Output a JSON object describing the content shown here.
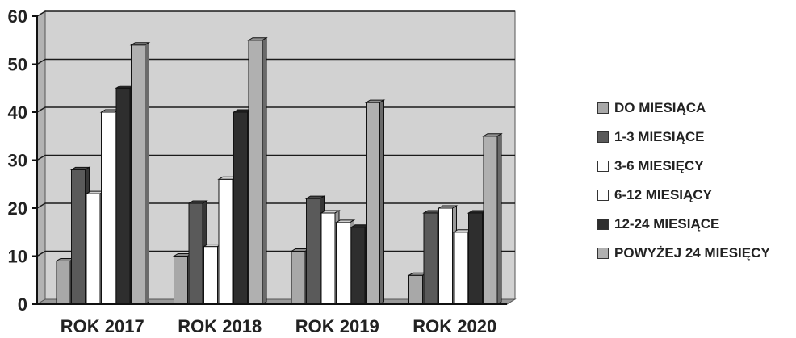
{
  "chart_data": {
    "type": "bar",
    "categories": [
      "ROK 2017",
      "ROK 2018",
      "ROK 2019",
      "ROK 2020"
    ],
    "series": [
      {
        "name": "DO MIESIĄCA",
        "values": [
          9,
          10,
          11,
          6
        ],
        "color": "#a8a8a8"
      },
      {
        "name": "1-3 MIESIĄCE",
        "values": [
          28,
          21,
          22,
          19
        ],
        "color": "#5a5a5a"
      },
      {
        "name": "3-6 MIESIĘCY",
        "values": [
          23,
          12,
          19,
          20
        ],
        "color": "#ffffff"
      },
      {
        "name": "6-12 MIESIĄCY",
        "values": [
          40,
          26,
          17,
          15
        ],
        "color": "#ffffff"
      },
      {
        "name": "12-24 MIESIĄCE",
        "values": [
          45,
          40,
          16,
          19
        ],
        "color": "#2e2e2e"
      },
      {
        "name": "POWYŻEJ 24 MIESIĘCY",
        "values": [
          54,
          55,
          42,
          35
        ],
        "color": "#b0b0b0"
      }
    ],
    "yticks": [
      0,
      10,
      20,
      30,
      40,
      50,
      60
    ],
    "ylim": [
      0,
      60
    ],
    "xlabel": "",
    "ylabel": "",
    "title": "",
    "grid": true,
    "legend_position": "right",
    "background_color": "#d2d2d2"
  }
}
